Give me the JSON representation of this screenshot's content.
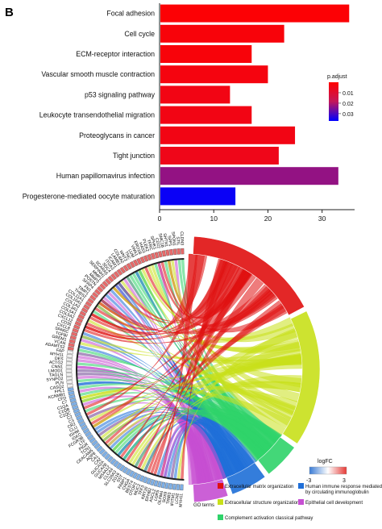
{
  "panel_label": "B",
  "chart_data": [
    {
      "type": "bar",
      "orientation": "horizontal",
      "categories": [
        "Focal  adhesion",
        "Cell cycle",
        "ECM-receptor interaction",
        "Vascular smooth muscle contraction",
        "p53 signaling pathway",
        "Leukocyte transendothelial migration",
        "Proteoglycans in cancer",
        "Tight junction",
        "Human papillomavirus infection",
        "Progesterone-mediated oocyte maturation"
      ],
      "values": [
        35,
        23,
        17,
        20,
        13,
        17,
        25,
        22,
        33,
        14
      ],
      "p_adjust": [
        0.001,
        0.002,
        0.002,
        0.003,
        0.004,
        0.004,
        0.004,
        0.005,
        0.023,
        0.036
      ],
      "xlim": [
        0,
        36
      ],
      "xticks": [
        "0",
        "10",
        "20",
        "30"
      ],
      "xtick_values": [
        0,
        10,
        20,
        30
      ],
      "grid": false,
      "legend": {
        "title": "p.adjust",
        "position": "right",
        "ticks": [
          "0.01",
          "0.02",
          "0.03"
        ],
        "tick_values": [
          0.01,
          0.02,
          0.03
        ],
        "range": [
          0.0,
          0.037
        ],
        "colors": [
          "#ff0000",
          "#0000ff"
        ]
      }
    },
    {
      "type": "chord",
      "genes": [
        "CLDN3",
        "STIL",
        "SPON1",
        "SPP1",
        "SHTN1",
        "SMC1B",
        "CD22",
        "SPHK1",
        "TFRC",
        "PLEK2",
        "HAS3",
        "ERO1B",
        "VWA1",
        "LUM",
        "TNC",
        "WNT2",
        "COL8A2",
        "LAMB1",
        "ICAM1",
        "ITGA3",
        "SDC4",
        "SCARA5",
        "SERPINH1",
        "MMP1",
        "MMP3",
        "POSTN",
        "SFRP4",
        "FN1",
        "TIMP1",
        "THBS2",
        "COL11A1",
        "COL10A1",
        "COL1A2",
        "COL3A1",
        "COL5A1",
        "COL5A2",
        "CXCL12",
        "CD36",
        "CXCL8",
        "SPARC",
        "TGFBI",
        "GREM1",
        "VCAN",
        "ADAMTS2",
        "FAP",
        "MYH11",
        "DES",
        "ACTG2",
        "CNN1",
        "LMOD1",
        "TAGLN",
        "SYNPO2",
        "PLN",
        "CASQ2",
        "FHL1",
        "KCNMB1",
        "CFD",
        "C7",
        "C1QA",
        "C1QB",
        "C1QC",
        "C2",
        "C3",
        "CR2",
        "CLU",
        "IGHM",
        "IGKC",
        "FCGR3B",
        "LTF",
        "PIGR",
        "TCN1",
        "CEACAM5",
        "AQP8",
        "CA1",
        "CA2",
        "GUCA2A",
        "GUCA2B",
        "MS4A12",
        "CLCA4",
        "SLC26A3",
        "ZG16",
        "SST",
        "FABP1",
        "CHGA",
        "BEST4",
        "OTOP2",
        "MUC2",
        "TFF3",
        "KRT20",
        "EPHB2",
        "ASCL2",
        "LGR5",
        "OLFM4",
        "SOX9",
        "TRIB3",
        "IFITM1",
        "LCN2",
        "MYH11"
      ],
      "terms": [
        {
          "name": "Extracellular matrix organization",
          "color": "#e01010"
        },
        {
          "name": "Extracellular structure organization",
          "color": "#c8e01a"
        },
        {
          "name": "Complement activation classical pathway",
          "color": "#2fd36a"
        },
        {
          "name": "Human immune response mediated by circulating immunoglobulin",
          "color": "#1f6fd8"
        },
        {
          "name": "Epithelial cell development",
          "color": "#c64fd2"
        }
      ],
      "legend_title": "GO terms",
      "logFC_legend": {
        "title": "logFC",
        "min_label": "-3",
        "max_label": "3",
        "min": -3,
        "max": 3,
        "colors": [
          "#3a7bd5",
          "#ffffff",
          "#e53935"
        ]
      }
    }
  ]
}
